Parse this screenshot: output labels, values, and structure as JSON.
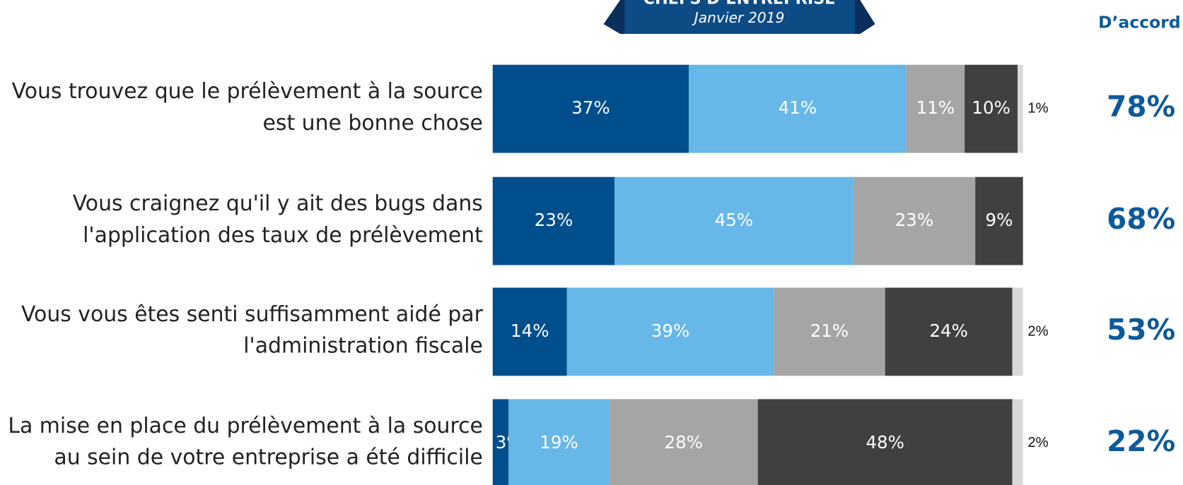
{
  "chart_data": {
    "type": "stacked-bar",
    "banner": {
      "title": "CHEFS D’ENTREPRISE",
      "subtitle": "Janvier 2019"
    },
    "categories": [
      [
        "Vous trouvez que le prélèvement à la source",
        "est une bonne chose"
      ],
      [
        "Vous craignez qu'il y ait des bugs dans",
        "l'application des taux de prélèvement"
      ],
      [
        "Vous vous êtes senti suffisamment aidé par",
        "l'administration fiscale"
      ],
      [
        "La mise en place du prélèvement à la source",
        "au sein de votre entreprise a été difficile"
      ]
    ],
    "series": [
      {
        "color": "#004f8c",
        "values": [
          37,
          23,
          14,
          3
        ],
        "value_labels": [
          "37%",
          "23%",
          "14%",
          "3%"
        ]
      },
      {
        "color": "#67b7e8",
        "values": [
          41,
          45,
          39,
          19
        ],
        "value_labels": [
          "41%",
          "45%",
          "39%",
          "19%"
        ]
      },
      {
        "color": "#a5a5a5",
        "values": [
          11,
          23,
          21,
          28
        ],
        "value_labels": [
          "11%",
          "23%",
          "21%",
          "28%"
        ]
      },
      {
        "color": "#404040",
        "values": [
          10,
          9,
          24,
          48
        ],
        "value_labels": [
          "10%",
          "9%",
          "24%",
          "48%"
        ]
      },
      {
        "color": "#d9d9d9",
        "values": [
          1,
          null,
          2,
          2
        ],
        "value_labels": [
          "1%",
          null,
          "2%",
          "2%"
        ]
      }
    ],
    "xlim": [
      0,
      100
    ],
    "agree": {
      "header": "D’accord",
      "color": "#0d5a9a",
      "values": [
        78,
        68,
        53,
        22
      ],
      "value_labels": [
        "78%",
        "68%",
        "53%",
        "22%"
      ]
    }
  }
}
